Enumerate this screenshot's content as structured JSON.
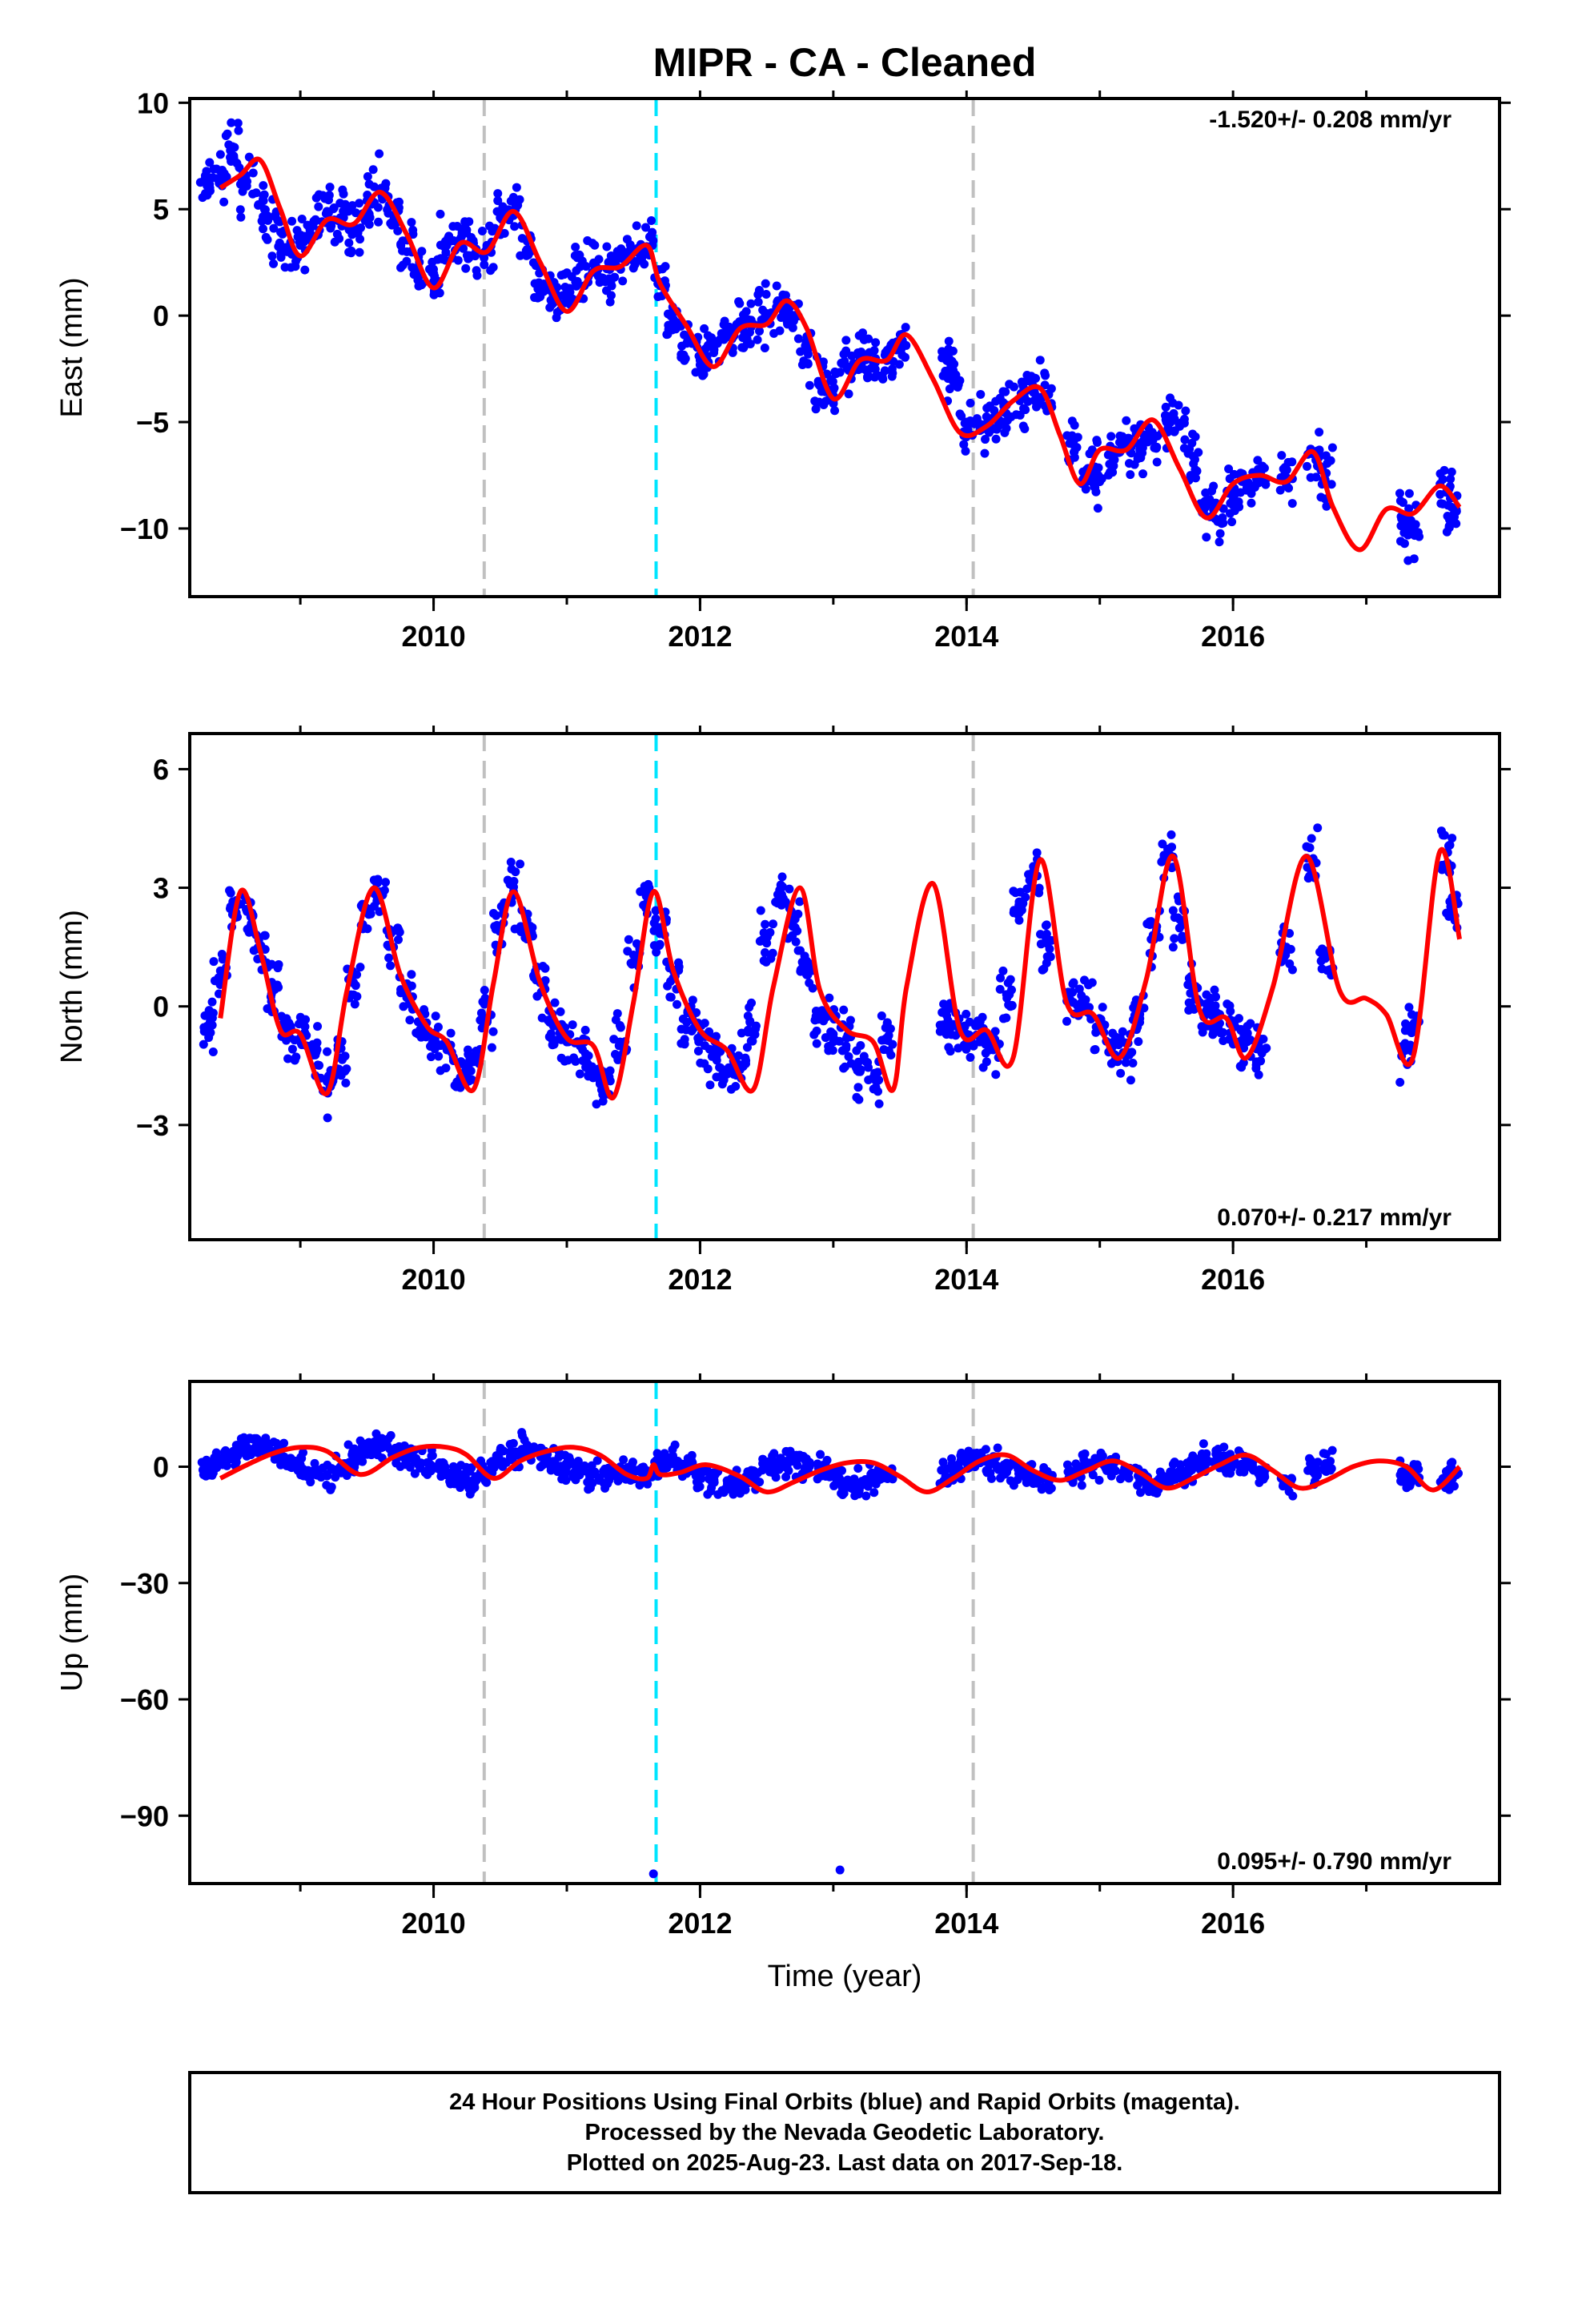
{
  "chart_data": {
    "type": "scatter",
    "title": "MIPR  - CA - Cleaned",
    "xlabel": "Time (year)",
    "x_ticks": [
      "2010",
      "2012",
      "2014",
      "2016"
    ],
    "xlim": [
      2008.17,
      2018.0
    ],
    "event_lines": [
      {
        "x": 2010.38,
        "color": "#c0c0c0",
        "style": "dashed"
      },
      {
        "x": 2011.67,
        "color": "#00e5ff",
        "style": "dashed"
      },
      {
        "x": 2014.05,
        "color": "#c0c0c0",
        "style": "dashed"
      }
    ],
    "colors": {
      "points": "#0000ff",
      "model": "#ff0000"
    },
    "panels": [
      {
        "component": "East",
        "ylabel": "East (mm)",
        "ylim": [
          -13.2,
          10.2
        ],
        "yticks": [
          10,
          5,
          0,
          -5,
          -10
        ],
        "ytick_labels": [
          "10",
          "5",
          "0",
          "−5",
          "−10"
        ],
        "rate": "-1.520+/- 0.208 mm/yr",
        "rate_position": "top-right",
        "model_curve": {
          "x": [
            2008.4,
            2008.55,
            2008.7,
            2008.85,
            2009.0,
            2009.2,
            2009.4,
            2009.6,
            2009.8,
            2010.0,
            2010.2,
            2010.4,
            2010.6,
            2010.8,
            2011.0,
            2011.2,
            2011.4,
            2011.6,
            2011.7,
            2011.9,
            2012.1,
            2012.3,
            2012.5,
            2012.65,
            2012.8,
            2013.0,
            2013.2,
            2013.4,
            2013.55,
            2013.75,
            2013.95,
            2014.15,
            2014.35,
            2014.55,
            2014.7,
            2014.85,
            2015.0,
            2015.2,
            2015.4,
            2015.6,
            2015.8,
            2016.0,
            2016.2,
            2016.4,
            2016.6,
            2016.75,
            2016.95,
            2017.15,
            2017.35,
            2017.55,
            2017.7
          ],
          "y": [
            6.0,
            6.6,
            7.3,
            5.0,
            2.8,
            4.5,
            4.3,
            5.8,
            3.8,
            1.3,
            3.4,
            3.0,
            4.9,
            2.5,
            0.2,
            2.1,
            2.3,
            3.3,
            1.5,
            -0.5,
            -2.4,
            -0.6,
            -0.4,
            0.7,
            -0.6,
            -3.9,
            -2.1,
            -2.1,
            -0.9,
            -3.0,
            -5.5,
            -5.2,
            -4.0,
            -3.4,
            -5.6,
            -7.9,
            -6.3,
            -6.3,
            -4.9,
            -7.2,
            -9.5,
            -7.9,
            -7.5,
            -7.8,
            -6.4,
            -9.0,
            -11.0,
            -9.1,
            -9.3,
            -8.0,
            -9.0
          ]
        },
        "series": [
          {
            "x": [
              2008.3,
              2008.4,
              2008.5,
              2008.6,
              2008.7,
              2008.8,
              2008.9,
              2009.0,
              2009.1,
              2009.2,
              2009.3,
              2009.4,
              2009.5,
              2009.6,
              2009.7,
              2009.8,
              2009.9,
              2010.0,
              2010.1,
              2010.2,
              2010.3,
              2010.4,
              2010.5,
              2010.6,
              2010.7,
              2010.8,
              2010.9,
              2011.0,
              2011.1,
              2011.2,
              2011.3,
              2011.4,
              2011.5,
              2011.6,
              2011.7,
              2011.8,
              2011.9,
              2012.0,
              2012.1,
              2012.2,
              2012.3,
              2012.4,
              2012.5,
              2012.6,
              2012.7,
              2012.8,
              2012.9,
              2013.0,
              2013.1,
              2013.2,
              2013.3,
              2013.4,
              2013.5,
              2013.85,
              2013.9,
              2014.0,
              2014.1,
              2014.2,
              2014.3,
              2014.4,
              2014.5,
              2014.6,
              2014.8,
              2014.9,
              2015.0,
              2015.1,
              2015.2,
              2015.3,
              2015.4,
              2015.5,
              2015.6,
              2015.7,
              2015.8,
              2015.9,
              2016.0,
              2016.1,
              2016.2,
              2016.4,
              2016.6,
              2016.7,
              2017.3,
              2017.35,
              2017.6,
              2017.65
            ],
            "y": [
              6.1,
              6.8,
              7.5,
              6.3,
              5.2,
              4.1,
              3.0,
              3.3,
              4.4,
              4.9,
              4.6,
              4.2,
              5.4,
              5.9,
              4.7,
              3.0,
              1.9,
              1.6,
              3.3,
              3.6,
              3.4,
              3.2,
              4.6,
              4.7,
              3.1,
              1.5,
              0.6,
              1.1,
              2.3,
              2.4,
              2.2,
              2.7,
              3.0,
              3.1,
              1.4,
              -0.2,
              -1.3,
              -2.1,
              -1.5,
              -0.8,
              -0.3,
              -0.4,
              0.1,
              0.6,
              -0.1,
              -1.6,
              -3.3,
              -3.5,
              -2.4,
              -2.0,
              -2.2,
              -2.1,
              -1.3,
              -2.1,
              -3.1,
              -5.0,
              -5.4,
              -4.8,
              -4.2,
              -4.0,
              -3.6,
              -3.7,
              -6.0,
              -7.6,
              -7.8,
              -6.7,
              -6.1,
              -6.3,
              -5.6,
              -5.0,
              -5.2,
              -6.6,
              -8.9,
              -9.6,
              -8.9,
              -8.2,
              -7.7,
              -7.6,
              -6.5,
              -7.4,
              -9.6,
              -10.2,
              -8.3,
              -9.4
            ]
          }
        ]
      },
      {
        "component": "North",
        "ylabel": "North (mm)",
        "ylim": [
          -5.9,
          6.9
        ],
        "yticks": [
          6,
          3,
          0,
          -3
        ],
        "ytick_labels": [
          "6",
          "3",
          "0",
          "−3"
        ],
        "rate": "0.070+/- 0.217 mm/yr",
        "rate_position": "bottom-right",
        "model_curve": {
          "x": [
            2008.4,
            2008.55,
            2008.7,
            2008.85,
            2009.0,
            2009.2,
            2009.35,
            2009.55,
            2009.75,
            2009.95,
            2010.1,
            2010.3,
            2010.45,
            2010.6,
            2010.8,
            2011.0,
            2011.2,
            2011.35,
            2011.5,
            2011.65,
            2011.8,
            2012.0,
            2012.2,
            2012.4,
            2012.55,
            2012.75,
            2012.9,
            2013.1,
            2013.3,
            2013.45,
            2013.55,
            2013.75,
            2013.95,
            2014.15,
            2014.35,
            2014.55,
            2014.75,
            2014.95,
            2015.15,
            2015.35,
            2015.55,
            2015.75,
            2015.95,
            2016.1,
            2016.3,
            2016.55,
            2016.8,
            2017.0,
            2017.15,
            2017.35,
            2017.55,
            2017.7
          ],
          "y": [
            -0.3,
            2.9,
            1.4,
            -0.6,
            -0.7,
            -2.2,
            0.4,
            3.0,
            0.8,
            -0.5,
            -0.9,
            -2.1,
            0.6,
            2.9,
            0.6,
            -0.8,
            -1.0,
            -2.3,
            0.1,
            2.9,
            0.9,
            -0.6,
            -1.1,
            -2.1,
            0.5,
            3.0,
            0.4,
            -0.6,
            -0.9,
            -2.1,
            0.5,
            3.1,
            -0.6,
            -0.6,
            -1.3,
            3.7,
            0.1,
            -0.2,
            -1.3,
            0.7,
            3.8,
            -0.1,
            -0.3,
            -1.3,
            0.5,
            3.8,
            0.4,
            0.2,
            -0.2,
            -1.3,
            3.9,
            1.7
          ]
        },
        "series": [
          {
            "x": [
              2008.3,
              2008.4,
              2008.5,
              2008.6,
              2008.7,
              2008.8,
              2008.9,
              2009.0,
              2009.1,
              2009.2,
              2009.3,
              2009.4,
              2009.5,
              2009.6,
              2009.7,
              2009.8,
              2009.9,
              2010.0,
              2010.1,
              2010.2,
              2010.3,
              2010.4,
              2010.5,
              2010.6,
              2010.7,
              2010.8,
              2010.9,
              2011.0,
              2011.1,
              2011.2,
              2011.3,
              2011.4,
              2011.5,
              2011.6,
              2011.7,
              2011.8,
              2011.9,
              2012.0,
              2012.1,
              2012.2,
              2012.3,
              2012.4,
              2012.5,
              2012.6,
              2012.7,
              2012.8,
              2012.9,
              2013.0,
              2013.1,
              2013.2,
              2013.3,
              2013.4,
              2013.85,
              2013.9,
              2014.0,
              2014.1,
              2014.2,
              2014.3,
              2014.4,
              2014.5,
              2014.6,
              2014.8,
              2014.9,
              2015.0,
              2015.1,
              2015.2,
              2015.3,
              2015.4,
              2015.5,
              2015.6,
              2015.7,
              2015.8,
              2015.9,
              2016.0,
              2016.1,
              2016.2,
              2016.4,
              2016.6,
              2016.7,
              2017.3,
              2017.35,
              2017.6,
              2017.65
            ],
            "y": [
              -0.5,
              0.9,
              2.6,
              2.4,
              1.5,
              0.5,
              -0.5,
              -0.8,
              -1.2,
              -1.9,
              -1.3,
              0.6,
              2.4,
              2.9,
              1.5,
              0.4,
              -0.4,
              -0.8,
              -1.1,
              -1.8,
              -1.4,
              -0.3,
              1.9,
              2.9,
              1.9,
              0.6,
              -0.5,
              -0.9,
              -1.0,
              -1.7,
              -1.8,
              -0.9,
              1.3,
              2.8,
              2.0,
              0.7,
              -0.4,
              -0.8,
              -1.1,
              -1.7,
              -1.6,
              -0.7,
              1.6,
              2.9,
              2.2,
              0.8,
              -0.3,
              -0.7,
              -0.8,
              -1.6,
              -1.8,
              -0.8,
              -0.5,
              -0.5,
              -0.7,
              -0.9,
              -1.1,
              0.3,
              2.6,
              3.4,
              1.6,
              0.1,
              0.0,
              -0.5,
              -1.0,
              -1.2,
              -0.2,
              1.8,
              3.7,
              2.2,
              0.4,
              -0.1,
              -0.2,
              -0.4,
              -0.9,
              -1.1,
              1.5,
              3.7,
              1.4,
              -1.1,
              -0.5,
              3.6,
              2.5
            ]
          }
        ]
      },
      {
        "component": "Up",
        "ylabel": "Up (mm)",
        "ylim": [
          -107.5,
          22.0
        ],
        "yticks": [
          0,
          -30,
          -60,
          -90
        ],
        "ytick_labels": [
          "0",
          "−30",
          "−60",
          "−90"
        ],
        "rate": "0.095+/- 0.790 mm/yr",
        "rate_position": "bottom-right",
        "model_curve": {
          "x": [
            2008.4,
            2008.6,
            2008.8,
            2009.0,
            2009.2,
            2009.45,
            2009.7,
            2009.9,
            2010.1,
            2010.25,
            2010.45,
            2010.65,
            2010.85,
            2011.05,
            2011.25,
            2011.45,
            2011.6,
            2011.65,
            2011.7,
            2011.85,
            2012.05,
            2012.3,
            2012.5,
            2012.7,
            2012.9,
            2013.1,
            2013.3,
            2013.5,
            2013.7,
            2013.9,
            2014.1,
            2014.3,
            2014.5,
            2014.7,
            2014.9,
            2015.1,
            2015.3,
            2015.5,
            2015.7,
            2015.9,
            2016.1,
            2016.3,
            2016.5,
            2016.7,
            2016.9,
            2017.1,
            2017.3,
            2017.5,
            2017.7
          ],
          "y": [
            -3.0,
            0.5,
            3.5,
            5.0,
            4.0,
            -2.0,
            2.5,
            5.0,
            5.0,
            3.0,
            -3.0,
            1.5,
            4.0,
            5.0,
            3.0,
            -2.0,
            -3.0,
            0.5,
            -2.0,
            -1.5,
            0.5,
            -2.5,
            -6.5,
            -4.0,
            -1.0,
            1.0,
            1.0,
            -2.5,
            -6.5,
            -3.0,
            1.5,
            3.0,
            -1.0,
            -3.5,
            -1.0,
            1.5,
            -1.5,
            -5.5,
            -3.0,
            0.5,
            3.0,
            -1.0,
            -5.5,
            -3.5,
            0.0,
            1.5,
            0.0,
            -6.0,
            0.0
          ]
        },
        "series": [
          {
            "x": [
              2008.3,
              2008.4,
              2008.5,
              2008.6,
              2008.7,
              2008.8,
              2008.9,
              2009.0,
              2009.1,
              2009.2,
              2009.3,
              2009.4,
              2009.5,
              2009.6,
              2009.7,
              2009.8,
              2009.9,
              2010.0,
              2010.1,
              2010.2,
              2010.3,
              2010.4,
              2010.5,
              2010.6,
              2010.7,
              2010.8,
              2010.9,
              2011.0,
              2011.1,
              2011.2,
              2011.3,
              2011.4,
              2011.5,
              2011.6,
              2011.7,
              2011.8,
              2011.9,
              2012.0,
              2012.1,
              2012.2,
              2012.3,
              2012.4,
              2012.5,
              2012.6,
              2012.7,
              2012.8,
              2012.9,
              2013.0,
              2013.1,
              2013.2,
              2013.3,
              2013.4,
              2013.85,
              2013.9,
              2014.0,
              2014.1,
              2014.2,
              2014.3,
              2014.4,
              2014.5,
              2014.6,
              2014.8,
              2014.9,
              2015.0,
              2015.1,
              2015.2,
              2015.3,
              2015.4,
              2015.5,
              2015.6,
              2015.7,
              2015.8,
              2015.9,
              2016.0,
              2016.1,
              2016.2,
              2016.4,
              2016.6,
              2016.7,
              2017.3,
              2017.35,
              2017.6,
              2017.65,
              2011.65,
              2013.05
            ],
            "y": [
              -1.0,
              2.0,
              3.5,
              5.0,
              5.5,
              4.0,
              2.0,
              0.5,
              -1.0,
              -2.0,
              0.0,
              2.5,
              4.5,
              5.5,
              4.0,
              2.5,
              1.0,
              0.0,
              -1.5,
              -2.5,
              -3.5,
              -1.5,
              1.5,
              3.5,
              4.5,
              3.0,
              1.0,
              0.0,
              -1.0,
              -2.0,
              -2.0,
              -1.0,
              -1.5,
              -2.5,
              0.5,
              1.5,
              0.0,
              -2.0,
              -4.0,
              -5.5,
              -4.0,
              -2.5,
              -0.5,
              1.0,
              1.5,
              0.5,
              -1.0,
              -2.5,
              -4.0,
              -5.0,
              -3.5,
              -1.5,
              -3.5,
              -1.0,
              1.0,
              2.0,
              1.0,
              -0.5,
              -2.0,
              -3.5,
              -3.0,
              -1.5,
              0.0,
              1.0,
              0.0,
              -1.5,
              -3.5,
              -4.5,
              -3.0,
              -1.0,
              1.0,
              2.0,
              2.5,
              1.5,
              0.0,
              -2.0,
              -4.0,
              -1.0,
              0.5,
              -3.0,
              -2.0,
              -3.0,
              -1.0,
              -105.0,
              -104.0
            ]
          }
        ]
      }
    ]
  },
  "footer": {
    "line1": "24 Hour Positions Using Final Orbits (blue) and Rapid Orbits (magenta).",
    "line2": "Processed by the Nevada Geodetic Laboratory.",
    "line3": "Plotted on 2025-Aug-23. Last data on 2017-Sep-18."
  }
}
